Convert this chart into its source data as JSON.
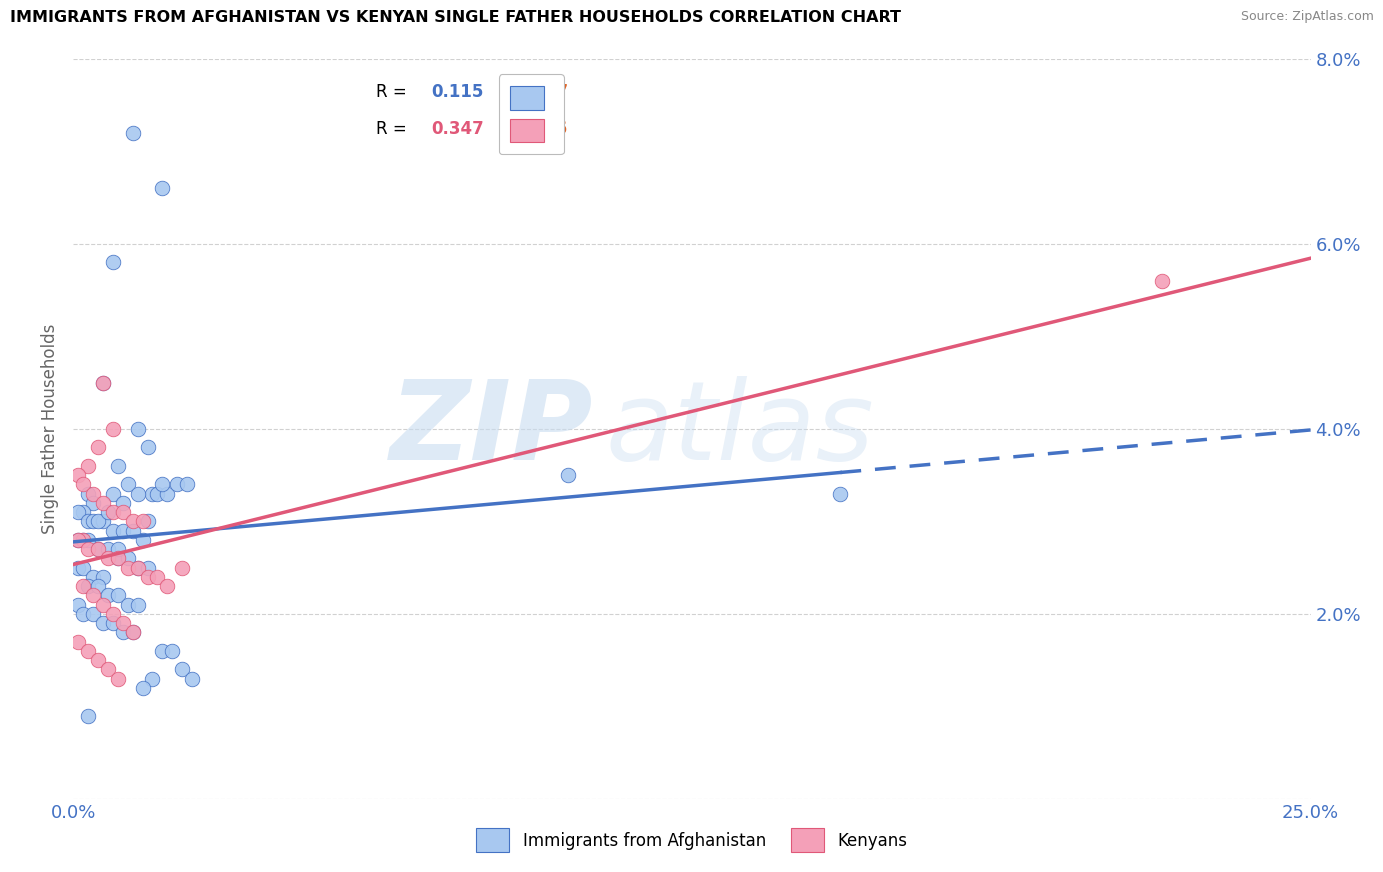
{
  "title": "IMMIGRANTS FROM AFGHANISTAN VS KENYAN SINGLE FATHER HOUSEHOLDS CORRELATION CHART",
  "source": "Source: ZipAtlas.com",
  "ylabel": "Single Father Households",
  "xlim": [
    0.0,
    0.25
  ],
  "ylim": [
    0.0,
    0.08
  ],
  "color_blue": "#A8C8F0",
  "color_pink": "#F4A0B8",
  "color_blue_line": "#4472C4",
  "color_pink_line": "#E05878",
  "color_tick": "#4472C4",
  "watermark_color": "#C8DCF0",
  "blue_R": 0.115,
  "blue_N": 67,
  "pink_R": 0.347,
  "pink_N": 36,
  "blue_scatter_x": [
    0.012,
    0.018,
    0.008,
    0.006,
    0.013,
    0.015,
    0.009,
    0.003,
    0.004,
    0.002,
    0.001,
    0.003,
    0.004,
    0.006,
    0.008,
    0.01,
    0.012,
    0.014,
    0.016,
    0.002,
    0.001,
    0.003,
    0.005,
    0.007,
    0.009,
    0.011,
    0.013,
    0.015,
    0.017,
    0.019,
    0.021,
    0.018,
    0.023,
    0.001,
    0.002,
    0.004,
    0.006,
    0.008,
    0.011,
    0.013,
    0.1,
    0.155,
    0.003,
    0.005,
    0.007,
    0.009,
    0.011,
    0.013,
    0.001,
    0.002,
    0.004,
    0.006,
    0.008,
    0.01,
    0.012,
    0.018,
    0.02,
    0.022,
    0.024,
    0.016,
    0.014,
    0.003,
    0.009,
    0.005,
    0.007,
    0.01,
    0.015
  ],
  "blue_scatter_y": [
    0.072,
    0.066,
    0.058,
    0.045,
    0.04,
    0.038,
    0.036,
    0.033,
    0.032,
    0.031,
    0.031,
    0.03,
    0.03,
    0.03,
    0.029,
    0.029,
    0.029,
    0.028,
    0.033,
    0.028,
    0.028,
    0.028,
    0.027,
    0.027,
    0.026,
    0.026,
    0.025,
    0.025,
    0.033,
    0.033,
    0.034,
    0.034,
    0.034,
    0.025,
    0.025,
    0.024,
    0.024,
    0.033,
    0.034,
    0.033,
    0.035,
    0.033,
    0.023,
    0.023,
    0.022,
    0.022,
    0.021,
    0.021,
    0.021,
    0.02,
    0.02,
    0.019,
    0.019,
    0.018,
    0.018,
    0.016,
    0.016,
    0.014,
    0.013,
    0.013,
    0.012,
    0.009,
    0.027,
    0.03,
    0.031,
    0.032,
    0.03
  ],
  "pink_scatter_x": [
    0.006,
    0.008,
    0.005,
    0.003,
    0.001,
    0.002,
    0.004,
    0.006,
    0.008,
    0.01,
    0.012,
    0.014,
    0.002,
    0.001,
    0.003,
    0.005,
    0.007,
    0.009,
    0.011,
    0.013,
    0.015,
    0.017,
    0.019,
    0.022,
    0.002,
    0.004,
    0.006,
    0.008,
    0.01,
    0.012,
    0.001,
    0.003,
    0.005,
    0.007,
    0.22,
    0.009
  ],
  "pink_scatter_y": [
    0.045,
    0.04,
    0.038,
    0.036,
    0.035,
    0.034,
    0.033,
    0.032,
    0.031,
    0.031,
    0.03,
    0.03,
    0.028,
    0.028,
    0.027,
    0.027,
    0.026,
    0.026,
    0.025,
    0.025,
    0.024,
    0.024,
    0.023,
    0.025,
    0.023,
    0.022,
    0.021,
    0.02,
    0.019,
    0.018,
    0.017,
    0.016,
    0.015,
    0.014,
    0.056,
    0.013
  ]
}
